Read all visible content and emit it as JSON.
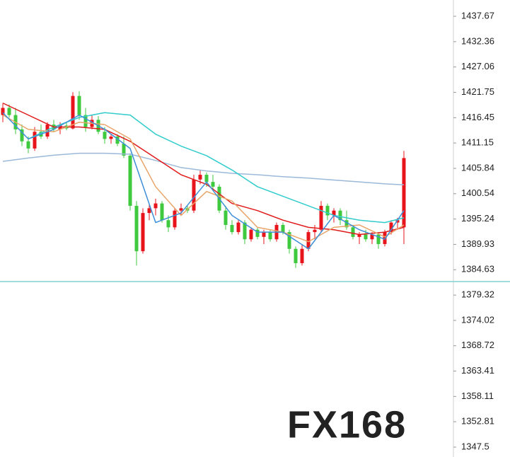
{
  "chart_data": {
    "type": "candlestick",
    "watermark": "FX168",
    "up_color": "#e8141c",
    "down_color": "#3ec93e",
    "ylim": [
      1345.43,
      1441.08
    ],
    "yticks": [
      1437.67,
      1432.36,
      1427.06,
      1421.75,
      1416.45,
      1411.15,
      1405.84,
      1400.54,
      1395.24,
      1389.93,
      1384.63,
      1379.32,
      1374.02,
      1368.72,
      1363.41,
      1358.11,
      1352.81,
      1347.5
    ],
    "hline": 1382.15,
    "hline_color": "#80d4d4",
    "categories": [
      null,
      null,
      null,
      null,
      null,
      null,
      null,
      null,
      null,
      null,
      null,
      null,
      null,
      null,
      null,
      null,
      null,
      null,
      null,
      null,
      null,
      null,
      null,
      null,
      null,
      null,
      null,
      null,
      null,
      null,
      null,
      null,
      null,
      null,
      null,
      null,
      null,
      null,
      null,
      null,
      null,
      null,
      null,
      null,
      null,
      null,
      null,
      null,
      null,
      null,
      null,
      null,
      null,
      null,
      null,
      null,
      null,
      null,
      null,
      null,
      null,
      null,
      null,
      null
    ],
    "open": [
      1417.0,
      1418.5,
      1417.0,
      1414.0,
      1411.5,
      1410.0,
      1413.5,
      1412.5,
      1415.0,
      1414.0,
      1414.8,
      1414.2,
      1421.0,
      1417.0,
      1414.5,
      1416.0,
      1413.5,
      1412.0,
      1412.5,
      1411.0,
      1408.5,
      1398.0,
      1388.5,
      1396.5,
      1397.5,
      1398.5,
      1395.0,
      1393.5,
      1397.0,
      1397.5,
      1397.0,
      1403.5,
      1404.5,
      1403.0,
      1402.0,
      1397.0,
      1394.0,
      1392.5,
      1394.5,
      1391.0,
      1393.0,
      1391.5,
      1392.5,
      1391.0,
      1394.0,
      1392.5,
      1389.0,
      1386.0,
      1389.0,
      1392.5,
      1393.0,
      1398.0,
      1396.0,
      1397.0,
      1395.0,
      1393.5,
      1391.5,
      1392.0,
      1391.0,
      1392.0,
      1390.0,
      1392.5,
      1394.5,
      1393.5
    ],
    "high": [
      1419.5,
      1419.2,
      1418.5,
      1415.0,
      1412.5,
      1414.5,
      1415.0,
      1415.5,
      1416.0,
      1415.5,
      1415.5,
      1421.8,
      1422.0,
      1418.5,
      1417.0,
      1416.8,
      1414.5,
      1413.0,
      1413.0,
      1412.5,
      1409.0,
      1399.0,
      1397.5,
      1398.5,
      1399.5,
      1399.0,
      1396.0,
      1397.5,
      1398.5,
      1398.0,
      1404.5,
      1405.5,
      1405.0,
      1404.5,
      1402.5,
      1398.0,
      1395.0,
      1395.0,
      1395.0,
      1393.5,
      1393.5,
      1393.0,
      1393.0,
      1394.5,
      1394.5,
      1393.0,
      1389.5,
      1390.0,
      1393.0,
      1394.0,
      1399.0,
      1398.5,
      1397.5,
      1397.5,
      1397.0,
      1394.0,
      1392.5,
      1393.0,
      1392.5,
      1392.5,
      1393.0,
      1395.0,
      1395.5,
      1409.5
    ],
    "low": [
      1415.5,
      1416.5,
      1413.0,
      1410.5,
      1409.0,
      1409.5,
      1412.0,
      1412.0,
      1413.5,
      1413.0,
      1413.8,
      1414.0,
      1416.0,
      1413.5,
      1414.0,
      1413.0,
      1411.0,
      1411.0,
      1410.5,
      1408.0,
      1397.0,
      1385.5,
      1388.0,
      1395.0,
      1396.0,
      1394.5,
      1392.5,
      1393.0,
      1396.0,
      1396.5,
      1396.5,
      1402.5,
      1402.0,
      1401.5,
      1396.5,
      1393.0,
      1392.0,
      1392.0,
      1390.0,
      1390.5,
      1391.0,
      1390.0,
      1390.5,
      1390.5,
      1392.0,
      1388.0,
      1385.0,
      1385.5,
      1388.5,
      1391.0,
      1392.5,
      1395.0,
      1394.5,
      1394.0,
      1393.0,
      1391.0,
      1390.0,
      1390.5,
      1390.0,
      1389.0,
      1389.5,
      1392.0,
      1393.0,
      1390.0
    ],
    "close": [
      1418.5,
      1417.0,
      1414.0,
      1411.5,
      1410.0,
      1413.5,
      1412.5,
      1415.0,
      1414.0,
      1414.8,
      1414.2,
      1421.0,
      1417.0,
      1414.5,
      1416.0,
      1413.5,
      1412.0,
      1412.5,
      1411.0,
      1408.5,
      1398.0,
      1388.5,
      1396.5,
      1397.5,
      1398.5,
      1395.0,
      1393.5,
      1397.0,
      1397.5,
      1397.0,
      1403.5,
      1404.5,
      1403.0,
      1402.0,
      1397.0,
      1394.0,
      1392.5,
      1394.5,
      1391.0,
      1393.0,
      1391.5,
      1392.5,
      1391.0,
      1394.0,
      1392.5,
      1389.0,
      1386.0,
      1389.0,
      1392.5,
      1393.0,
      1398.0,
      1396.0,
      1397.0,
      1395.0,
      1393.5,
      1391.5,
      1392.0,
      1391.0,
      1392.0,
      1390.0,
      1392.5,
      1394.5,
      1395.0,
      1408.0
    ],
    "lines": [
      {
        "color": "#9bb9d9",
        "x": [
          0,
          4,
          8,
          12,
          16,
          20,
          24,
          28,
          32,
          36,
          40,
          44,
          48,
          52,
          56,
          60,
          63
        ],
        "values": [
          1407.3,
          1408,
          1408.6,
          1409,
          1409,
          1408.8,
          1407.5,
          1406,
          1405.3,
          1404.8,
          1404.5,
          1404.1,
          1403.8,
          1403.4,
          1403,
          1402.6,
          1402.4
        ]
      },
      {
        "color": "#33cccc",
        "x": [
          0,
          4,
          8,
          12,
          16,
          20,
          24,
          28,
          32,
          36,
          40,
          44,
          48,
          52,
          56,
          60,
          63
        ],
        "values": [
          null,
          1412,
          1414.5,
          1416.5,
          1417.5,
          1417,
          1413,
          1410.5,
          1408.5,
          1405.5,
          1402,
          1400,
          1398,
          1396,
          1395,
          1394.5,
          1395.5
        ]
      },
      {
        "color": "#e0191b",
        "x": [
          0,
          4,
          8,
          12,
          16,
          20,
          24,
          28,
          32,
          36,
          40,
          44,
          48,
          52,
          56,
          60,
          63
        ],
        "values": [
          1419.5,
          1417,
          1414.5,
          1414.5,
          1414,
          1411.5,
          1408,
          1404.5,
          1402.5,
          1398.5,
          1397,
          1395,
          1393.5,
          1393,
          1392,
          1392.5,
          1393.5
        ]
      },
      {
        "color": "#e8a56a",
        "x": [
          0,
          4,
          8,
          12,
          16,
          20,
          24,
          28,
          32,
          36,
          40,
          44,
          48,
          52,
          56,
          60,
          63
        ],
        "values": [
          1417,
          1414,
          1413.5,
          1415.5,
          1415,
          1412,
          1402,
          1396,
          1401,
          1399,
          1393.5,
          1392.5,
          1390.5,
          1393.5,
          1394,
          1391.5,
          1394
        ]
      },
      {
        "color": "#3d8fd8",
        "x": [
          0,
          4,
          8,
          12,
          16,
          20,
          24,
          28,
          32,
          36,
          40,
          44,
          48,
          52,
          56,
          60,
          63
        ],
        "values": [
          1417.5,
          1412,
          1414,
          1417,
          1414,
          1410,
          1394.5,
          1396.5,
          1403,
          1396,
          1392.5,
          1392.5,
          1389,
          1396,
          1393,
          1391,
          1397
        ]
      }
    ]
  }
}
